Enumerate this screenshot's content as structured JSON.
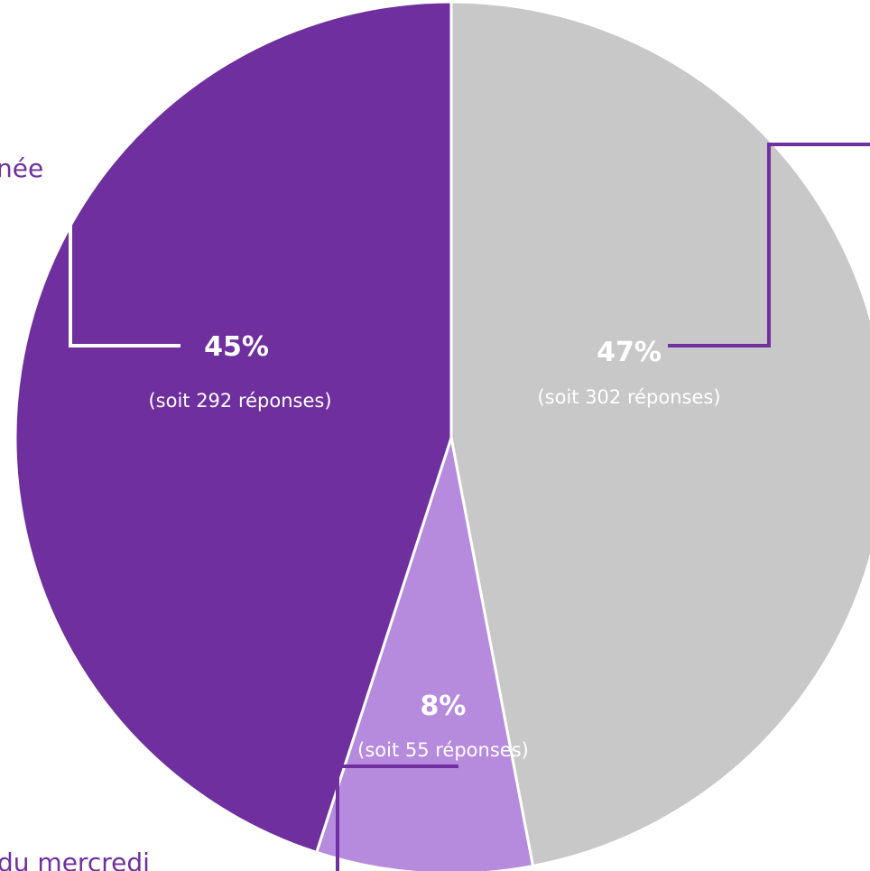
{
  "chart_data": {
    "type": "pie",
    "start_angle_deg": 0,
    "direction": "clockwise",
    "slices": [
      {
        "value": 47,
        "color": "#c8c8c8",
        "label_pct": "47%",
        "label_count": "(soit 302 réponses)",
        "label_text_color": "#ffffff",
        "callout_color": "#7030a0"
      },
      {
        "value": 8,
        "color": "#b68add",
        "label_pct": "8%",
        "label_count": "(soit 55 réponses)",
        "label_text_color": "#ffffff",
        "callout_color": "#7030a0"
      },
      {
        "value": 45,
        "color": "#6f2f9e",
        "label_pct": "45%",
        "label_count": "(soit 292 réponses)",
        "label_text_color": "#ffffff",
        "callout_color": "#ffffff"
      }
    ],
    "category_labels": [
      {
        "text": "née",
        "color": "#7030a0"
      },
      {
        "text": "du mercredi",
        "color": "#7030a0"
      }
    ]
  }
}
